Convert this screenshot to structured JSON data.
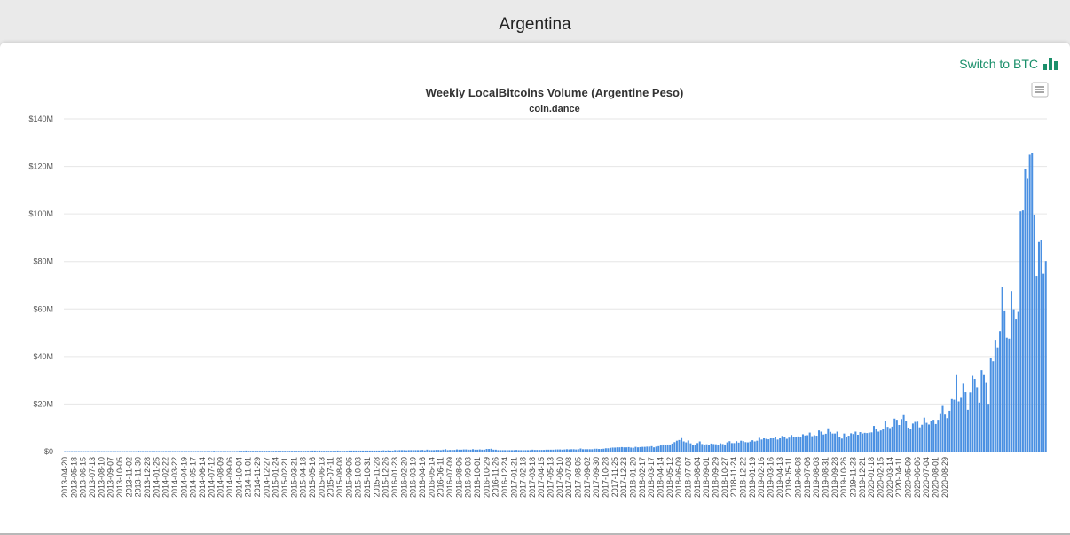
{
  "header": {
    "title": "Argentina"
  },
  "toolbar": {
    "switch_label": "Switch to BTC",
    "switch_icon": "bar-chart-icon",
    "menu_icon": "hamburger-icon"
  },
  "colors": {
    "bar": "#4a90e2",
    "accent": "#1a8f6a",
    "grid": "#e6e6e6"
  },
  "chart_data": {
    "type": "bar",
    "title": "Weekly LocalBitcoins Volume (Argentine Peso)",
    "subtitle": "coin.dance",
    "xlabel": "",
    "ylabel": "",
    "ylim": [
      0,
      140
    ],
    "y_unit": "M ARS",
    "grid": true,
    "y_ticks": [
      "$0",
      "$20M",
      "$40M",
      "$60M",
      "$80M",
      "$100M",
      "$120M",
      "$140M"
    ],
    "x_tick_labels": [
      "2013-04-20",
      "2013-05-18",
      "2013-06-15",
      "2013-07-13",
      "2013-08-10",
      "2013-09-07",
      "2013-10-05",
      "2013-11-02",
      "2013-11-30",
      "2013-12-28",
      "2014-01-25",
      "2014-02-22",
      "2014-03-22",
      "2014-04-19",
      "2014-05-17",
      "2014-06-14",
      "2014-07-12",
      "2014-08-09",
      "2014-09-06",
      "2014-10-04",
      "2014-11-01",
      "2014-11-29",
      "2014-12-27",
      "2015-01-24",
      "2015-02-21",
      "2015-03-21",
      "2015-04-18",
      "2015-05-16",
      "2015-06-13",
      "2015-07-11",
      "2015-08-08",
      "2015-09-05",
      "2015-10-03",
      "2015-10-31",
      "2015-11-28",
      "2015-12-26",
      "2016-01-23",
      "2016-02-20",
      "2016-03-19",
      "2016-04-16",
      "2016-05-14",
      "2016-06-11",
      "2016-07-09",
      "2016-08-06",
      "2016-09-03",
      "2016-10-01",
      "2016-10-29",
      "2016-11-26",
      "2016-12-24",
      "2017-01-21",
      "2017-02-18",
      "2017-03-18",
      "2017-04-15",
      "2017-05-13",
      "2017-06-10",
      "2017-07-08",
      "2017-08-05",
      "2017-09-02",
      "2017-09-30",
      "2017-10-28",
      "2017-11-25",
      "2017-12-23",
      "2018-01-20",
      "2018-02-17",
      "2018-03-17",
      "2018-04-14",
      "2018-05-12",
      "2018-06-09",
      "2018-07-07",
      "2018-08-04",
      "2018-09-01",
      "2018-09-29",
      "2018-10-27",
      "2018-11-24",
      "2018-12-22",
      "2019-01-19",
      "2019-02-16",
      "2019-03-16",
      "2019-04-13",
      "2019-05-11",
      "2019-06-08",
      "2019-07-06",
      "2019-08-03",
      "2019-08-31",
      "2019-09-28",
      "2019-10-26",
      "2019-11-23",
      "2019-12-21",
      "2020-01-18",
      "2020-02-15",
      "2020-03-14",
      "2020-04-11",
      "2020-05-09",
      "2020-06-06",
      "2020-07-04",
      "2020-08-01",
      "2020-08-29"
    ],
    "weeks_per_tick": 4,
    "values": [
      0.1,
      0.1,
      0.1,
      0.1,
      0.1,
      0.1,
      0.1,
      0.1,
      0.1,
      0.1,
      0.1,
      0.1,
      0.1,
      0.1,
      0.1,
      0.1,
      0.1,
      0.1,
      0.1,
      0.1,
      0.1,
      0.1,
      0.1,
      0.1,
      0.1,
      0.1,
      0.1,
      0.1,
      0.1,
      0.1,
      0.1,
      0.1,
      0.3,
      0.2,
      0.2,
      0.2,
      0.2,
      0.2,
      0.2,
      0.2,
      0.2,
      0.2,
      0.2,
      0.2,
      0.2,
      0.2,
      0.2,
      0.2,
      0.2,
      0.2,
      0.2,
      0.2,
      0.2,
      0.2,
      0.2,
      0.2,
      0.2,
      0.2,
      0.2,
      0.2,
      0.2,
      0.2,
      0.2,
      0.2,
      0.2,
      0.3,
      0.2,
      0.2,
      0.2,
      0.2,
      0.2,
      0.2,
      0.2,
      0.2,
      0.2,
      0.2,
      0.3,
      0.3,
      0.3,
      0.4,
      0.3,
      0.3,
      0.3,
      0.3,
      0.3,
      0.3,
      0.3,
      0.3,
      0.3,
      0.3,
      0.3,
      0.3,
      0.3,
      0.3,
      0.3,
      0.3,
      0.3,
      0.3,
      0.3,
      0.3,
      0.3,
      0.3,
      0.3,
      0.3,
      0.3,
      0.3,
      0.3,
      0.3,
      0.4,
      0.4,
      0.3,
      0.4,
      0.3,
      0.3,
      0.3,
      0.3,
      0.3,
      0.3,
      0.3,
      0.4,
      0.3,
      0.3,
      0.3,
      0.3,
      0.4,
      0.4,
      0.4,
      0.4,
      0.4,
      0.4,
      0.4,
      0.4,
      0.4,
      0.4,
      0.4,
      0.4,
      0.4,
      0.4,
      0.4,
      0.5,
      0.4,
      0.5,
      0.4,
      0.4,
      0.6,
      0.5,
      0.6,
      0.6,
      0.6,
      0.5,
      0.6,
      0.6,
      0.6,
      0.6,
      0.6,
      0.6,
      0.7,
      0.5,
      0.8,
      0.6,
      0.6,
      0.6,
      0.7,
      0.7,
      0.6,
      0.8,
      1.0,
      0.6,
      0.7,
      0.7,
      0.7,
      0.9,
      0.8,
      0.8,
      0.9,
      0.9,
      0.8,
      0.8,
      1.0,
      0.8,
      0.8,
      0.9,
      0.8,
      0.8,
      1.1,
      1.1,
      1.2,
      0.8,
      0.8,
      0.6,
      0.6,
      0.6,
      0.6,
      0.6,
      0.6,
      0.6,
      0.6,
      0.7,
      0.6,
      0.6,
      0.6,
      0.6,
      0.6,
      0.6,
      0.8,
      0.7,
      0.7,
      0.7,
      0.7,
      0.7,
      0.8,
      0.8,
      0.8,
      0.8,
      0.9,
      0.9,
      0.9,
      0.8,
      0.9,
      1.0,
      0.9,
      1.0,
      1.0,
      0.9,
      1.0,
      1.3,
      1.0,
      1.0,
      1.0,
      1.0,
      1.0,
      1.2,
      1.2,
      1.1,
      1.1,
      1.2,
      1.4,
      1.4,
      1.6,
      1.7,
      1.7,
      1.8,
      1.8,
      1.9,
      1.8,
      1.8,
      1.9,
      1.7,
      1.6,
      2.0,
      1.8,
      1.9,
      2.0,
      2.0,
      2.1,
      2.1,
      2.3,
      1.8,
      2.1,
      2.3,
      2.6,
      3.0,
      2.8,
      3.0,
      3.0,
      3.4,
      4.0,
      4.6,
      4.9,
      5.7,
      4.3,
      3.9,
      4.7,
      3.5,
      2.8,
      2.7,
      3.6,
      4.3,
      3.2,
      2.8,
      3.1,
      2.7,
      3.4,
      3.2,
      3.1,
      2.9,
      3.5,
      3.2,
      3.0,
      3.9,
      4.4,
      3.6,
      3.6,
      4.4,
      3.8,
      4.6,
      4.4,
      4.0,
      3.9,
      4.2,
      4.8,
      4.3,
      4.6,
      5.8,
      5.1,
      5.6,
      5.4,
      5.2,
      5.6,
      5.6,
      6.0,
      5.1,
      5.6,
      6.6,
      6.0,
      5.4,
      5.9,
      7.0,
      6.2,
      6.3,
      6.4,
      6.3,
      7.3,
      6.8,
      6.9,
      8.0,
      6.5,
      6.9,
      6.7,
      8.9,
      8.4,
      7.2,
      7.5,
      9.8,
      8.3,
      7.6,
      7.6,
      8.4,
      6.3,
      5.5,
      7.6,
      6.3,
      6.7,
      7.7,
      7.4,
      8.4,
      7.1,
      8.2,
      7.6,
      7.9,
      7.8,
      8.0,
      8.1,
      10.8,
      9.4,
      8.4,
      8.9,
      9.6,
      12.9,
      10.4,
      9.9,
      10.5,
      13.9,
      13.4,
      11.2,
      13.7,
      15.4,
      12.9,
      10.1,
      9.4,
      11.8,
      12.5,
      12.6,
      10.2,
      11.3,
      14.3,
      12.1,
      11.4,
      12.9,
      13.4,
      11.6,
      13.4,
      15.8,
      19.2,
      15.6,
      14.1,
      17.2,
      22.1,
      21.8,
      32.2,
      21.1,
      22.6,
      28.6,
      25.0,
      17.6,
      24.9,
      31.9,
      30.6,
      27.1,
      20.6,
      34.3,
      32.2,
      28.9,
      20.1,
      39.2,
      38.0,
      47.0,
      43.8,
      50.7,
      69.3,
      59.4,
      47.9,
      47.5,
      67.5,
      59.9,
      55.6,
      58.8,
      101.1,
      101.5,
      119.0,
      114.8,
      124.9,
      125.8,
      99.7,
      73.9,
      88.2,
      89.2,
      74.8,
      80.2
    ]
  }
}
